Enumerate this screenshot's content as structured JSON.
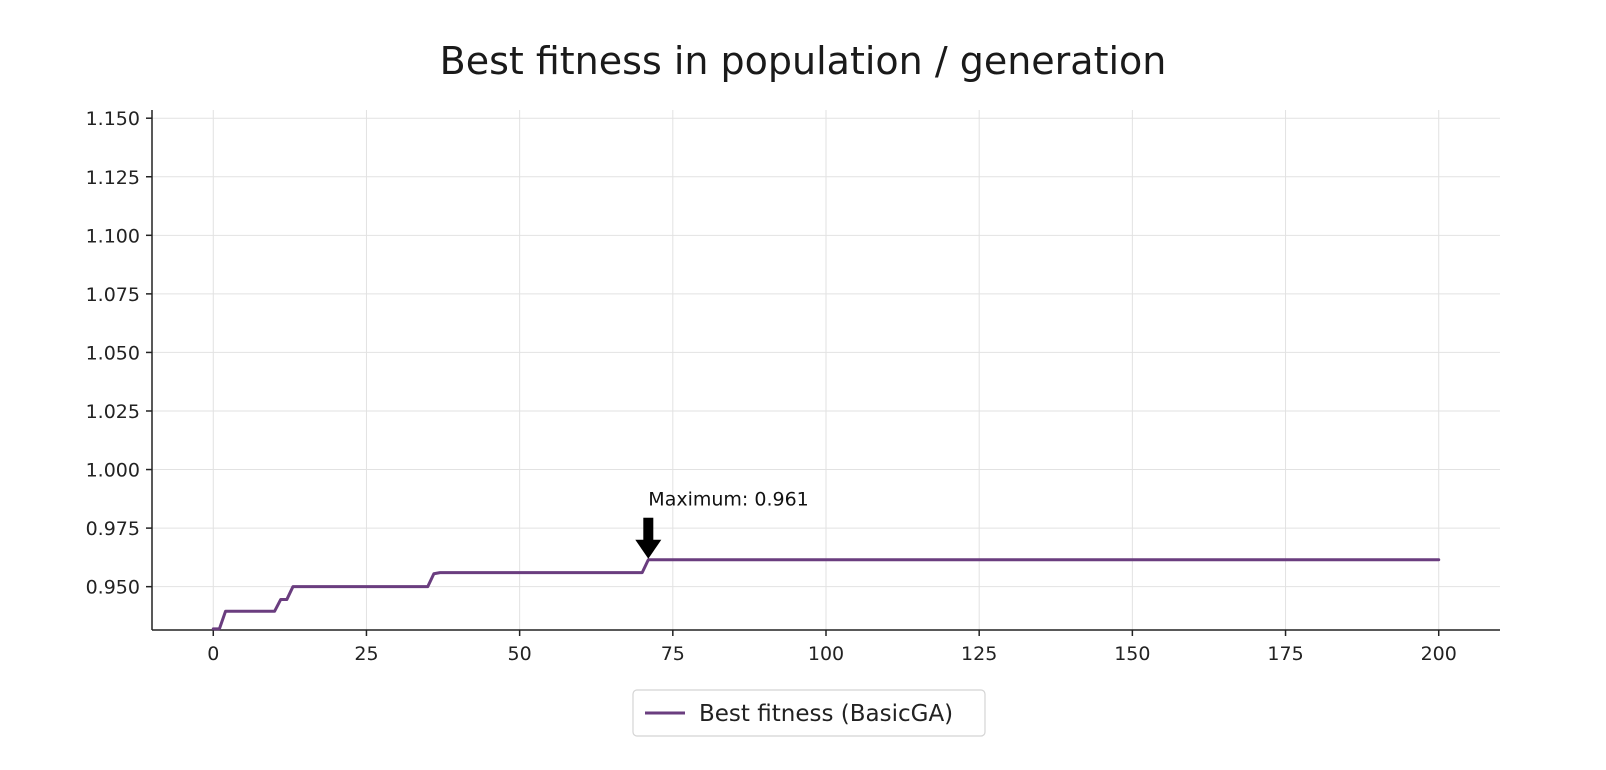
{
  "chart_data": {
    "type": "line",
    "title": "Best fitness in population / generation",
    "xlabel": "",
    "ylabel": "",
    "xlim": [
      -10,
      210
    ],
    "ylim": [
      0.9315,
      1.1535
    ],
    "x_ticks": [
      0,
      25,
      50,
      75,
      100,
      125,
      150,
      175,
      200
    ],
    "x_tick_labels": [
      "0",
      "25",
      "50",
      "75",
      "100",
      "125",
      "150",
      "175",
      "200"
    ],
    "y_ticks": [
      0.95,
      0.975,
      1.0,
      1.025,
      1.05,
      1.075,
      1.1,
      1.125,
      1.15
    ],
    "y_tick_labels": [
      "0.950",
      "0.975",
      "1.000",
      "1.025",
      "1.050",
      "1.075",
      "1.100",
      "1.125",
      "1.150"
    ],
    "grid": true,
    "legend_position": "bottom-center",
    "series": [
      {
        "name": "Best fitness (BasicGA)",
        "color": "#6a3d7f",
        "x": [
          0,
          1,
          2,
          10,
          11,
          12,
          13,
          35,
          36,
          37,
          70,
          71,
          200
        ],
        "y": [
          0.932,
          0.932,
          0.9395,
          0.9395,
          0.9445,
          0.9445,
          0.95,
          0.95,
          0.9555,
          0.956,
          0.956,
          0.9615,
          0.9615
        ]
      }
    ],
    "annotations": [
      {
        "text": "Maximum: 0.961",
        "x": 71,
        "y": 0.9615,
        "style": "arrow-down",
        "color": "#000000"
      }
    ]
  }
}
